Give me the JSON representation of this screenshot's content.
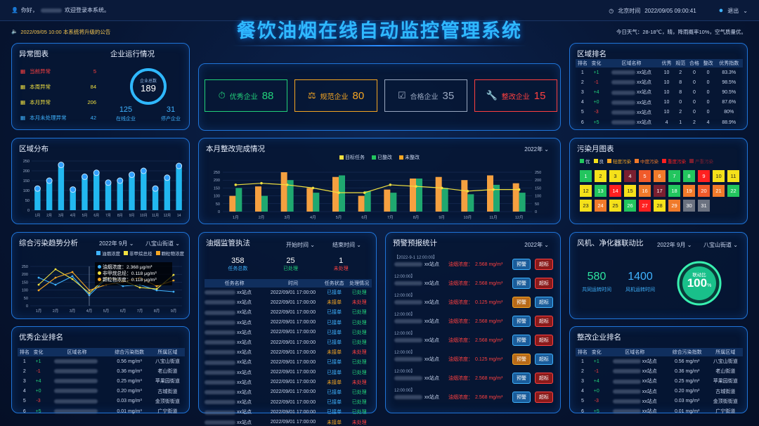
{
  "topbar": {
    "greeting": "你好，",
    "user": "████",
    "welcome": "欢迎登录本系统。",
    "time_label": "北京时间",
    "time": "2022/09/05  09:00:41",
    "logout": "退出"
  },
  "title": "餐饮油烟在线自动监控管理系统",
  "notice": "2022/09/05  10:00  本系统将升级的公告",
  "weather": "今日天气：28-18℃，晴，降雨概率10%，空气质量优。",
  "abnormal": {
    "title": "异常图表",
    "items": [
      {
        "label": "当前异常",
        "value": "5",
        "color": "#ff4040"
      },
      {
        "label": "本周异常",
        "value": "84",
        "color": "#f0e040"
      },
      {
        "label": "本月异常",
        "value": "206",
        "color": "#f0e040"
      },
      {
        "label": "本月未处理异常",
        "value": "42",
        "color": "#3fb3ff"
      }
    ]
  },
  "enterprise": {
    "title": "企业运行情况",
    "total_label": "企业总数",
    "total": "189",
    "online": "125",
    "online_label": "在线企业",
    "stopped": "31",
    "stopped_label": "停产企业"
  },
  "cards": [
    {
      "label": "优秀企业",
      "value": "88",
      "color": "#22d17a",
      "icon": "stopwatch-icon"
    },
    {
      "label": "规范企业",
      "value": "80",
      "color": "#f5a623",
      "icon": "scale-icon"
    },
    {
      "label": "合格企业",
      "value": "35",
      "color": "#9aa8c0",
      "icon": "check-icon"
    },
    {
      "label": "整改企业",
      "value": "15",
      "color": "#ff4040",
      "icon": "wrench-icon"
    }
  ],
  "region_rank": {
    "title": "区域排名",
    "headers": [
      "排名",
      "变化",
      "区域名称",
      "优秀",
      "规范",
      "合格",
      "整改",
      "优秀指数"
    ],
    "rows": [
      {
        "rank": "1",
        "chg": "+1",
        "name": "xx站点",
        "a": "10",
        "b": "2",
        "c": "0",
        "d": "0",
        "idx": "83.3%"
      },
      {
        "rank": "2",
        "chg": "-1",
        "name": "xx站点",
        "a": "10",
        "b": "8",
        "c": "0",
        "d": "0",
        "idx": "98.5%"
      },
      {
        "rank": "3",
        "chg": "+4",
        "name": "xx站点",
        "a": "10",
        "b": "8",
        "c": "0",
        "d": "0",
        "idx": "90.5%"
      },
      {
        "rank": "4",
        "chg": "+0",
        "name": "xx站点",
        "a": "10",
        "b": "0",
        "c": "0",
        "d": "0",
        "idx": "87.6%"
      },
      {
        "rank": "5",
        "chg": "-3",
        "name": "xx站点",
        "a": "10",
        "b": "2",
        "c": "0",
        "d": "0",
        "idx": "80%"
      },
      {
        "rank": "6",
        "chg": "+5",
        "name": "xx站点",
        "a": "4",
        "b": "1",
        "c": "2",
        "d": "4",
        "idx": "88.9%"
      }
    ]
  },
  "district": {
    "title": "区域分布",
    "values": [
      110,
      150,
      230,
      105,
      170,
      190,
      140,
      150,
      180,
      200,
      110,
      165,
      225
    ],
    "yticks": [
      "0",
      "50",
      "100",
      "150",
      "200",
      "250"
    ],
    "xlabels": [
      "1月",
      "2月",
      "3月",
      "4月",
      "5月",
      "6月",
      "7月",
      "8月",
      "9月",
      "10月",
      "11月",
      "12月",
      "14"
    ]
  },
  "monthly": {
    "title": "本月整改完成情况",
    "year": "2022年",
    "legend": [
      "目标任务",
      "已整改",
      "未整改"
    ],
    "target": [
      100,
      160,
      250,
      150,
      220,
      100,
      140,
      210,
      220,
      200,
      230,
      180
    ],
    "done": [
      150,
      100,
      200,
      120,
      230,
      130,
      120,
      210,
      150,
      110,
      170,
      120
    ],
    "line": [
      170,
      180,
      170,
      150,
      120,
      120,
      170,
      160,
      150,
      130,
      140,
      140
    ],
    "xlabels": [
      "1月",
      "2月",
      "3月",
      "4月",
      "5月",
      "6月",
      "7月",
      "8月",
      "9月",
      "10月",
      "11月",
      "12月"
    ],
    "yticks": [
      "0",
      "50",
      "100",
      "150",
      "200",
      "250"
    ]
  },
  "pollution": {
    "title": "污染月图表",
    "legend": [
      "优",
      "良",
      "轻度污染",
      "中度污染",
      "重度污染",
      "严重污染"
    ],
    "cells": [
      {
        "n": "1",
        "c": "#22c55e"
      },
      {
        "n": "2",
        "c": "#f5e11a"
      },
      {
        "n": "3",
        "c": "#f5e11a"
      },
      {
        "n": "4",
        "c": "#7a1f30"
      },
      {
        "n": "5",
        "c": "#f05a2a"
      },
      {
        "n": "6",
        "c": "#f07a2a"
      },
      {
        "n": "7",
        "c": "#22c55e"
      },
      {
        "n": "8",
        "c": "#22c55e"
      },
      {
        "n": "9",
        "c": "#ff2020"
      },
      {
        "n": "10",
        "c": "#f5e11a"
      },
      {
        "n": "11",
        "c": "#f5e11a"
      },
      {
        "n": "12",
        "c": "#f5e11a"
      },
      {
        "n": "13",
        "c": "#22c55e"
      },
      {
        "n": "14",
        "c": "#ff2020"
      },
      {
        "n": "15",
        "c": "#f5e11a"
      },
      {
        "n": "16",
        "c": "#f07a2a"
      },
      {
        "n": "17",
        "c": "#7a1f30"
      },
      {
        "n": "18",
        "c": "#22c55e"
      },
      {
        "n": "19",
        "c": "#f07a2a"
      },
      {
        "n": "20",
        "c": "#f05a2a"
      },
      {
        "n": "21",
        "c": "#f07a2a"
      },
      {
        "n": "22",
        "c": "#22c55e"
      },
      {
        "n": "23",
        "c": "#f5e11a"
      },
      {
        "n": "24",
        "c": "#f07a2a"
      },
      {
        "n": "25",
        "c": "#f5e11a"
      },
      {
        "n": "26",
        "c": "#22c55e"
      },
      {
        "n": "27",
        "c": "#ff2020"
      },
      {
        "n": "28",
        "c": "#f5e11a"
      },
      {
        "n": "29",
        "c": "#f07a2a"
      },
      {
        "n": "30",
        "c": "#6b7280"
      },
      {
        "n": "31",
        "c": "#6b7280"
      }
    ]
  },
  "trend": {
    "title": "综合污染趋势分析",
    "month": "2022年 9月",
    "street": "八宝山街道",
    "legend": [
      "油烟浓度",
      "非甲烷总烃",
      "颗粒物浓度"
    ],
    "tooltip": [
      {
        "label": "油烟浓度：",
        "value": "2.368  μg/m³"
      },
      {
        "label": "非甲烷总烃：",
        "value": "0.118  μg/m³"
      },
      {
        "label": "颗粒物浓度：",
        "value": "0.118  μg/m³"
      }
    ],
    "xlabels": [
      "1月",
      "2月",
      "3月",
      "4月",
      "5月",
      "6月",
      "7月",
      "8月",
      "9月"
    ],
    "yticks": [
      "0",
      "50",
      "100",
      "150",
      "200",
      "250"
    ]
  },
  "enforce": {
    "title": "油烟监管执法",
    "start": "开始时间",
    "end": "结束时间",
    "stats": [
      {
        "v": "358",
        "l": "任务总数",
        "c": "#3fb3ff"
      },
      {
        "v": "25",
        "l": "已处理",
        "c": "#22d17a"
      },
      {
        "v": "1",
        "l": "未处理",
        "c": "#ff4040"
      }
    ],
    "headers": [
      "任务名称",
      "时间",
      "任务状态",
      "处理情况"
    ],
    "rows": [
      [
        "xx站点",
        "2022/09/01  17:00:00",
        "已接单",
        "已处理"
      ],
      [
        "xx站点",
        "2022/09/01  17:00:00",
        "未接单",
        "未处理"
      ],
      [
        "xx站点",
        "2022/09/01  17:00:00",
        "已接单",
        "已处理"
      ],
      [
        "xx站点",
        "2022/09/01  17:00:00",
        "已接单",
        "已处理"
      ],
      [
        "xx站点",
        "2022/09/01  17:00:00",
        "已接单",
        "已处理"
      ],
      [
        "xx站点",
        "2022/09/01  17:00:00",
        "已接单",
        "已处理"
      ],
      [
        "xx站点",
        "2022/09/01  17:00:00",
        "未接单",
        "未处理"
      ],
      [
        "xx站点",
        "2022/09/01  17:00:00",
        "已接单",
        "已处理"
      ],
      [
        "xx站点",
        "2022/09/01  17:00:00",
        "已接单",
        "已处理"
      ],
      [
        "xx站点",
        "2022/09/01  17:00:00",
        "未接单",
        "未处理"
      ],
      [
        "xx站点",
        "2022/09/01  17:00:00",
        "已接单",
        "已处理"
      ],
      [
        "xx站点",
        "2022/09/01  17:00:00",
        "已接单",
        "已处理"
      ],
      [
        "xx站点",
        "2022/09/01  17:00:00",
        "已接单",
        "已处理"
      ],
      [
        "xx站点",
        "2022/09/01  17:00:00",
        "未接单",
        "未处理"
      ],
      [
        "xx站点",
        "2022/09/01  17:00:00",
        "已接单",
        "已处理"
      ]
    ]
  },
  "warning": {
    "title": "预警预报统计",
    "year": "2022年",
    "rows": [
      {
        "time": "【2022-9-1 12:00:00】",
        "name": "xx站点",
        "label": "油烟浓度：",
        "val": "2.568 mg/m³",
        "a": "预警",
        "b": "超标"
      },
      {
        "time": "12:00:00】",
        "name": "xx站点",
        "label": "油烟浓度：",
        "val": "2.568 mg/m³",
        "a": "预警",
        "b": "超标"
      },
      {
        "time": "12:00:00】",
        "name": "xx站点",
        "label": "油烟浓度：",
        "val": "0.125 mg/m³",
        "a": "预警",
        "b": "超标"
      },
      {
        "time": "12:00:00】",
        "name": "xx站点",
        "label": "油烟浓度：",
        "val": "2.568 mg/m³",
        "a": "预警",
        "b": "超标"
      },
      {
        "time": "12:00:00】",
        "name": "xx站点",
        "label": "油烟浓度：",
        "val": "2.568 mg/m³",
        "a": "预警",
        "b": "超标"
      },
      {
        "time": "12:00:00】",
        "name": "xx站点",
        "label": "油烟浓度：",
        "val": "0.125 mg/m³",
        "a": "预警",
        "b": "超标"
      },
      {
        "time": "12:00:00】",
        "name": "xx站点",
        "label": "油烟浓度：",
        "val": "2.568 mg/m³",
        "a": "预警",
        "b": "超标"
      },
      {
        "time": "12:00:00】",
        "name": "xx站点",
        "label": "油烟浓度：",
        "val": "2.568 mg/m³",
        "a": "预警",
        "b": "超标"
      }
    ]
  },
  "fan": {
    "title": "风机、净化器联动比",
    "month": "2022年 9月",
    "street": "八宝山街道",
    "fan_val": "580",
    "fan_label": "共同运转时间",
    "puri_val": "1400",
    "puri_label": "风机运转时间",
    "ring_label": "联动比",
    "ring_val": "100",
    "ring_unit": "%",
    "ratio": 1.0
  },
  "excellent": {
    "title": "优秀企业排名",
    "headers": [
      "排名",
      "变化",
      "区域名称",
      "综合污染指数",
      "所属区域"
    ],
    "rows": [
      [
        "1",
        "+1",
        "",
        "0.56 mg/m³",
        "八宝山街道"
      ],
      [
        "2",
        "-1",
        "",
        "0.36 mg/m³",
        "老山街道"
      ],
      [
        "3",
        "+4",
        "",
        "0.25 mg/m³",
        "苹果园街道"
      ],
      [
        "4",
        "+0",
        "",
        "0.20 mg/m³",
        "古城街道"
      ],
      [
        "5",
        "-3",
        "",
        "0.03 mg/m³",
        "金顶街街道"
      ],
      [
        "6",
        "+5",
        "",
        "0.01 mg/m³",
        "广宁街道"
      ]
    ]
  },
  "rectify": {
    "title": "整改企业排名",
    "headers": [
      "排名",
      "变化",
      "区域名称",
      "综合污染指数",
      "所属区域"
    ],
    "rows": [
      [
        "1",
        "+1",
        "xx站点",
        "0.56 mg/m³",
        "八宝山街道"
      ],
      [
        "2",
        "-1",
        "xx站点",
        "0.36 mg/m³",
        "老山街道"
      ],
      [
        "3",
        "+4",
        "xx站点",
        "0.25 mg/m³",
        "苹果园街道"
      ],
      [
        "4",
        "+0",
        "xx站点",
        "0.20 mg/m³",
        "古城街道"
      ],
      [
        "5",
        "-3",
        "xx站点",
        "0.03 mg/m³",
        "金顶街街道"
      ],
      [
        "6",
        "+5",
        "xx站点",
        "0.01 mg/m³",
        "广宁街道"
      ]
    ]
  },
  "chart_data": [
    {
      "type": "bar",
      "title": "区域分布",
      "categories": [
        "1月",
        "2月",
        "3月",
        "4月",
        "5月",
        "6月",
        "7月",
        "8月",
        "9月",
        "10月",
        "11月",
        "12月",
        "14"
      ],
      "values": [
        110,
        150,
        230,
        105,
        170,
        190,
        140,
        150,
        180,
        200,
        110,
        165,
        225
      ],
      "ylim": [
        0,
        250
      ]
    },
    {
      "type": "bar",
      "title": "本月整改完成情况",
      "categories": [
        "1月",
        "2月",
        "3月",
        "4月",
        "5月",
        "6月",
        "7月",
        "8月",
        "9月",
        "10月",
        "11月",
        "12月"
      ],
      "series": [
        {
          "name": "目标任务",
          "values": [
            100,
            160,
            250,
            150,
            220,
            100,
            140,
            210,
            220,
            200,
            230,
            180
          ]
        },
        {
          "name": "已整改",
          "values": [
            150,
            100,
            200,
            120,
            230,
            130,
            120,
            210,
            150,
            110,
            170,
            120
          ]
        }
      ],
      "ylim": [
        0,
        250
      ]
    }
  ]
}
